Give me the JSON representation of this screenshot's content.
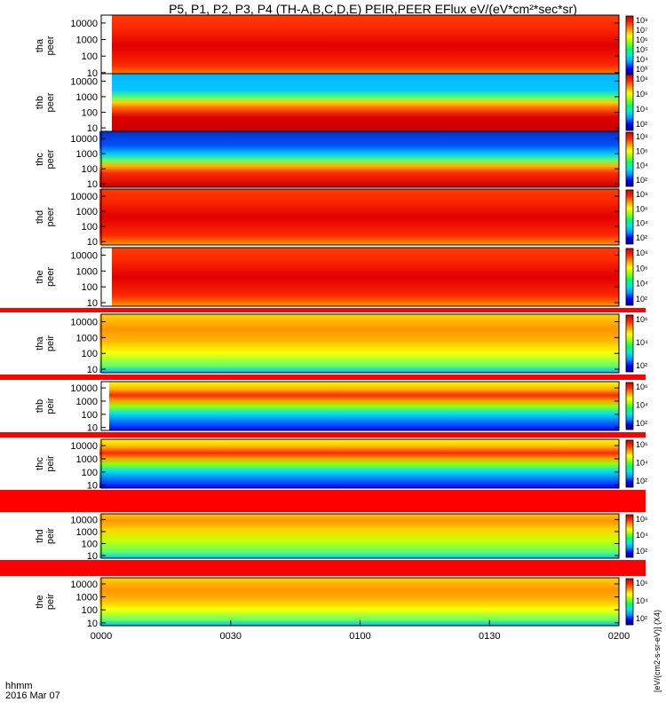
{
  "title": "P5, P1, P2, P3, P4 (TH-A,B,C,D,E) PEIR,PEER EFlux eV/(eV*cm²*sec*sr)",
  "chart_data": {
    "type": "heatmap",
    "title": "P5, P1, P2, P3, P4 (TH-A,B,C,D,E) PEIR,PEER EFlux eV/(eV*cm²*sec*sr)",
    "x_axis": {
      "ticks": [
        "0000",
        "0030",
        "0100",
        "0130",
        "0200"
      ],
      "range": [
        "00:00",
        "02:00"
      ],
      "label_line1": "hhmm",
      "label_line2": "2016 Mar 07"
    },
    "y_axis": {
      "scale": "log",
      "range": [
        6,
        30000
      ],
      "units": "eV",
      "ticks": [
        "10000",
        "1000",
        "100",
        "10"
      ]
    },
    "colorbar": {
      "scale": "log",
      "label": "[eV/(cm2-s-sr-eV)] (X4)",
      "colormap": [
        "#00007f",
        "#0000ff",
        "#0096ff",
        "#00e6e6",
        "#00ff64",
        "#96ff00",
        "#ffff00",
        "#ff9600",
        "#ff2800",
        "#c80000"
      ]
    },
    "panels": [
      {
        "id": "tha_peer",
        "label_line1": "tha",
        "label_line2": "peer",
        "colorbar_ticks": [
          "10⁸",
          "10⁷",
          "10⁶",
          "10⁵",
          "10⁴",
          "10³"
        ]
      },
      {
        "id": "thb_peer",
        "label_line1": "thb",
        "label_line2": "peer",
        "colorbar_ticks": [
          "10⁸",
          "10⁶",
          "10⁴",
          "10²"
        ]
      },
      {
        "id": "thc_peer",
        "label_line1": "thc",
        "label_line2": "peer",
        "colorbar_ticks": [
          "10⁸",
          "10⁶",
          "10⁴",
          "10²"
        ]
      },
      {
        "id": "thd_peer",
        "label_line1": "thd",
        "label_line2": "peer",
        "colorbar_ticks": [
          "10⁸",
          "10⁶",
          "10⁴",
          "10²"
        ]
      },
      {
        "id": "the_peer",
        "label_line1": "the",
        "label_line2": "peer",
        "colorbar_ticks": [
          "10⁸",
          "10⁶",
          "10⁴",
          "10²"
        ]
      },
      {
        "id": "tha_peir",
        "label_line1": "tha",
        "label_line2": "peir",
        "colorbar_ticks": [
          "10⁶",
          "10⁴",
          "10²"
        ]
      },
      {
        "id": "thb_peir",
        "label_line1": "thb",
        "label_line2": "peir",
        "colorbar_ticks": [
          "10⁶",
          "10⁴",
          "10²"
        ]
      },
      {
        "id": "thc_peir",
        "label_line1": "thc",
        "label_line2": "peir",
        "colorbar_ticks": [
          "10⁶",
          "10⁴",
          "10²"
        ]
      },
      {
        "id": "thd_peir",
        "label_line1": "thd",
        "label_line2": "peir",
        "colorbar_ticks": [
          "10⁶",
          "10⁴",
          "10²"
        ]
      },
      {
        "id": "the_peir",
        "label_line1": "the",
        "label_line2": "peir",
        "colorbar_ticks": [
          "10⁶",
          "10⁴",
          "10²"
        ]
      }
    ]
  }
}
